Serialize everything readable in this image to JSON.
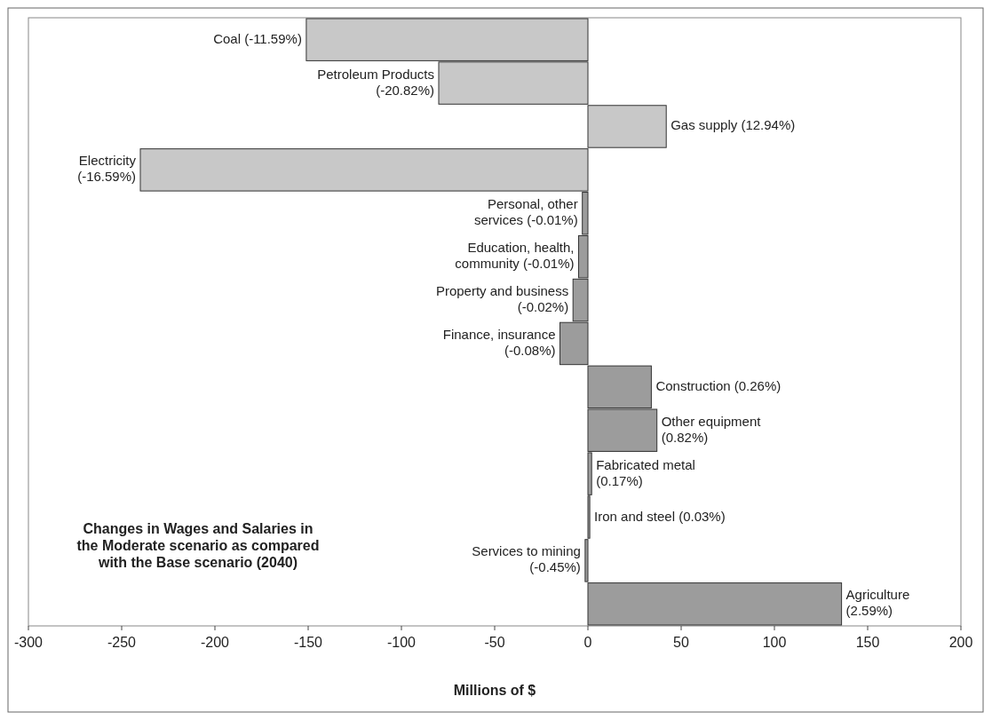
{
  "chart_data": {
    "type": "bar",
    "orientation": "horizontal",
    "title": "Changes in Wages and Salaries in\nthe Moderate scenario as compared\nwith the Base scenario (2040)",
    "xlabel": "Millions of $",
    "categories": [
      "Coal (-11.59%)",
      "Petroleum Products\n(-20.82%)",
      "Gas supply (12.94%)",
      "Electricity\n(-16.59%)",
      "Personal, other\nservices (-0.01%)",
      "Education, health,\ncommunity (-0.01%)",
      "Property and business\n(-0.02%)",
      "Finance, insurance\n(-0.08%)",
      "Construction (0.26%)",
      "Other equipment\n(0.82%)",
      "Fabricated metal\n(0.17%)",
      "Iron and steel (0.03%)",
      "Services to mining\n(-0.45%)",
      "Agriculture\n(2.59%)"
    ],
    "values": [
      -151,
      -80,
      42,
      -240,
      -3,
      -5,
      -8,
      -15,
      34,
      37,
      2,
      1,
      -1.5,
      136
    ],
    "colors": [
      "#c8c8c8",
      "#c8c8c8",
      "#c8c8c8",
      "#c8c8c8",
      "#9c9c9c",
      "#9c9c9c",
      "#9c9c9c",
      "#9c9c9c",
      "#9c9c9c",
      "#9c9c9c",
      "#9c9c9c",
      "#9c9c9c",
      "#9c9c9c",
      "#9c9c9c"
    ],
    "xlim": [
      -300,
      200
    ],
    "xticks": [
      -300,
      -250,
      -200,
      -150,
      -100,
      -50,
      0,
      50,
      100,
      150,
      200
    ],
    "grid": false
  }
}
